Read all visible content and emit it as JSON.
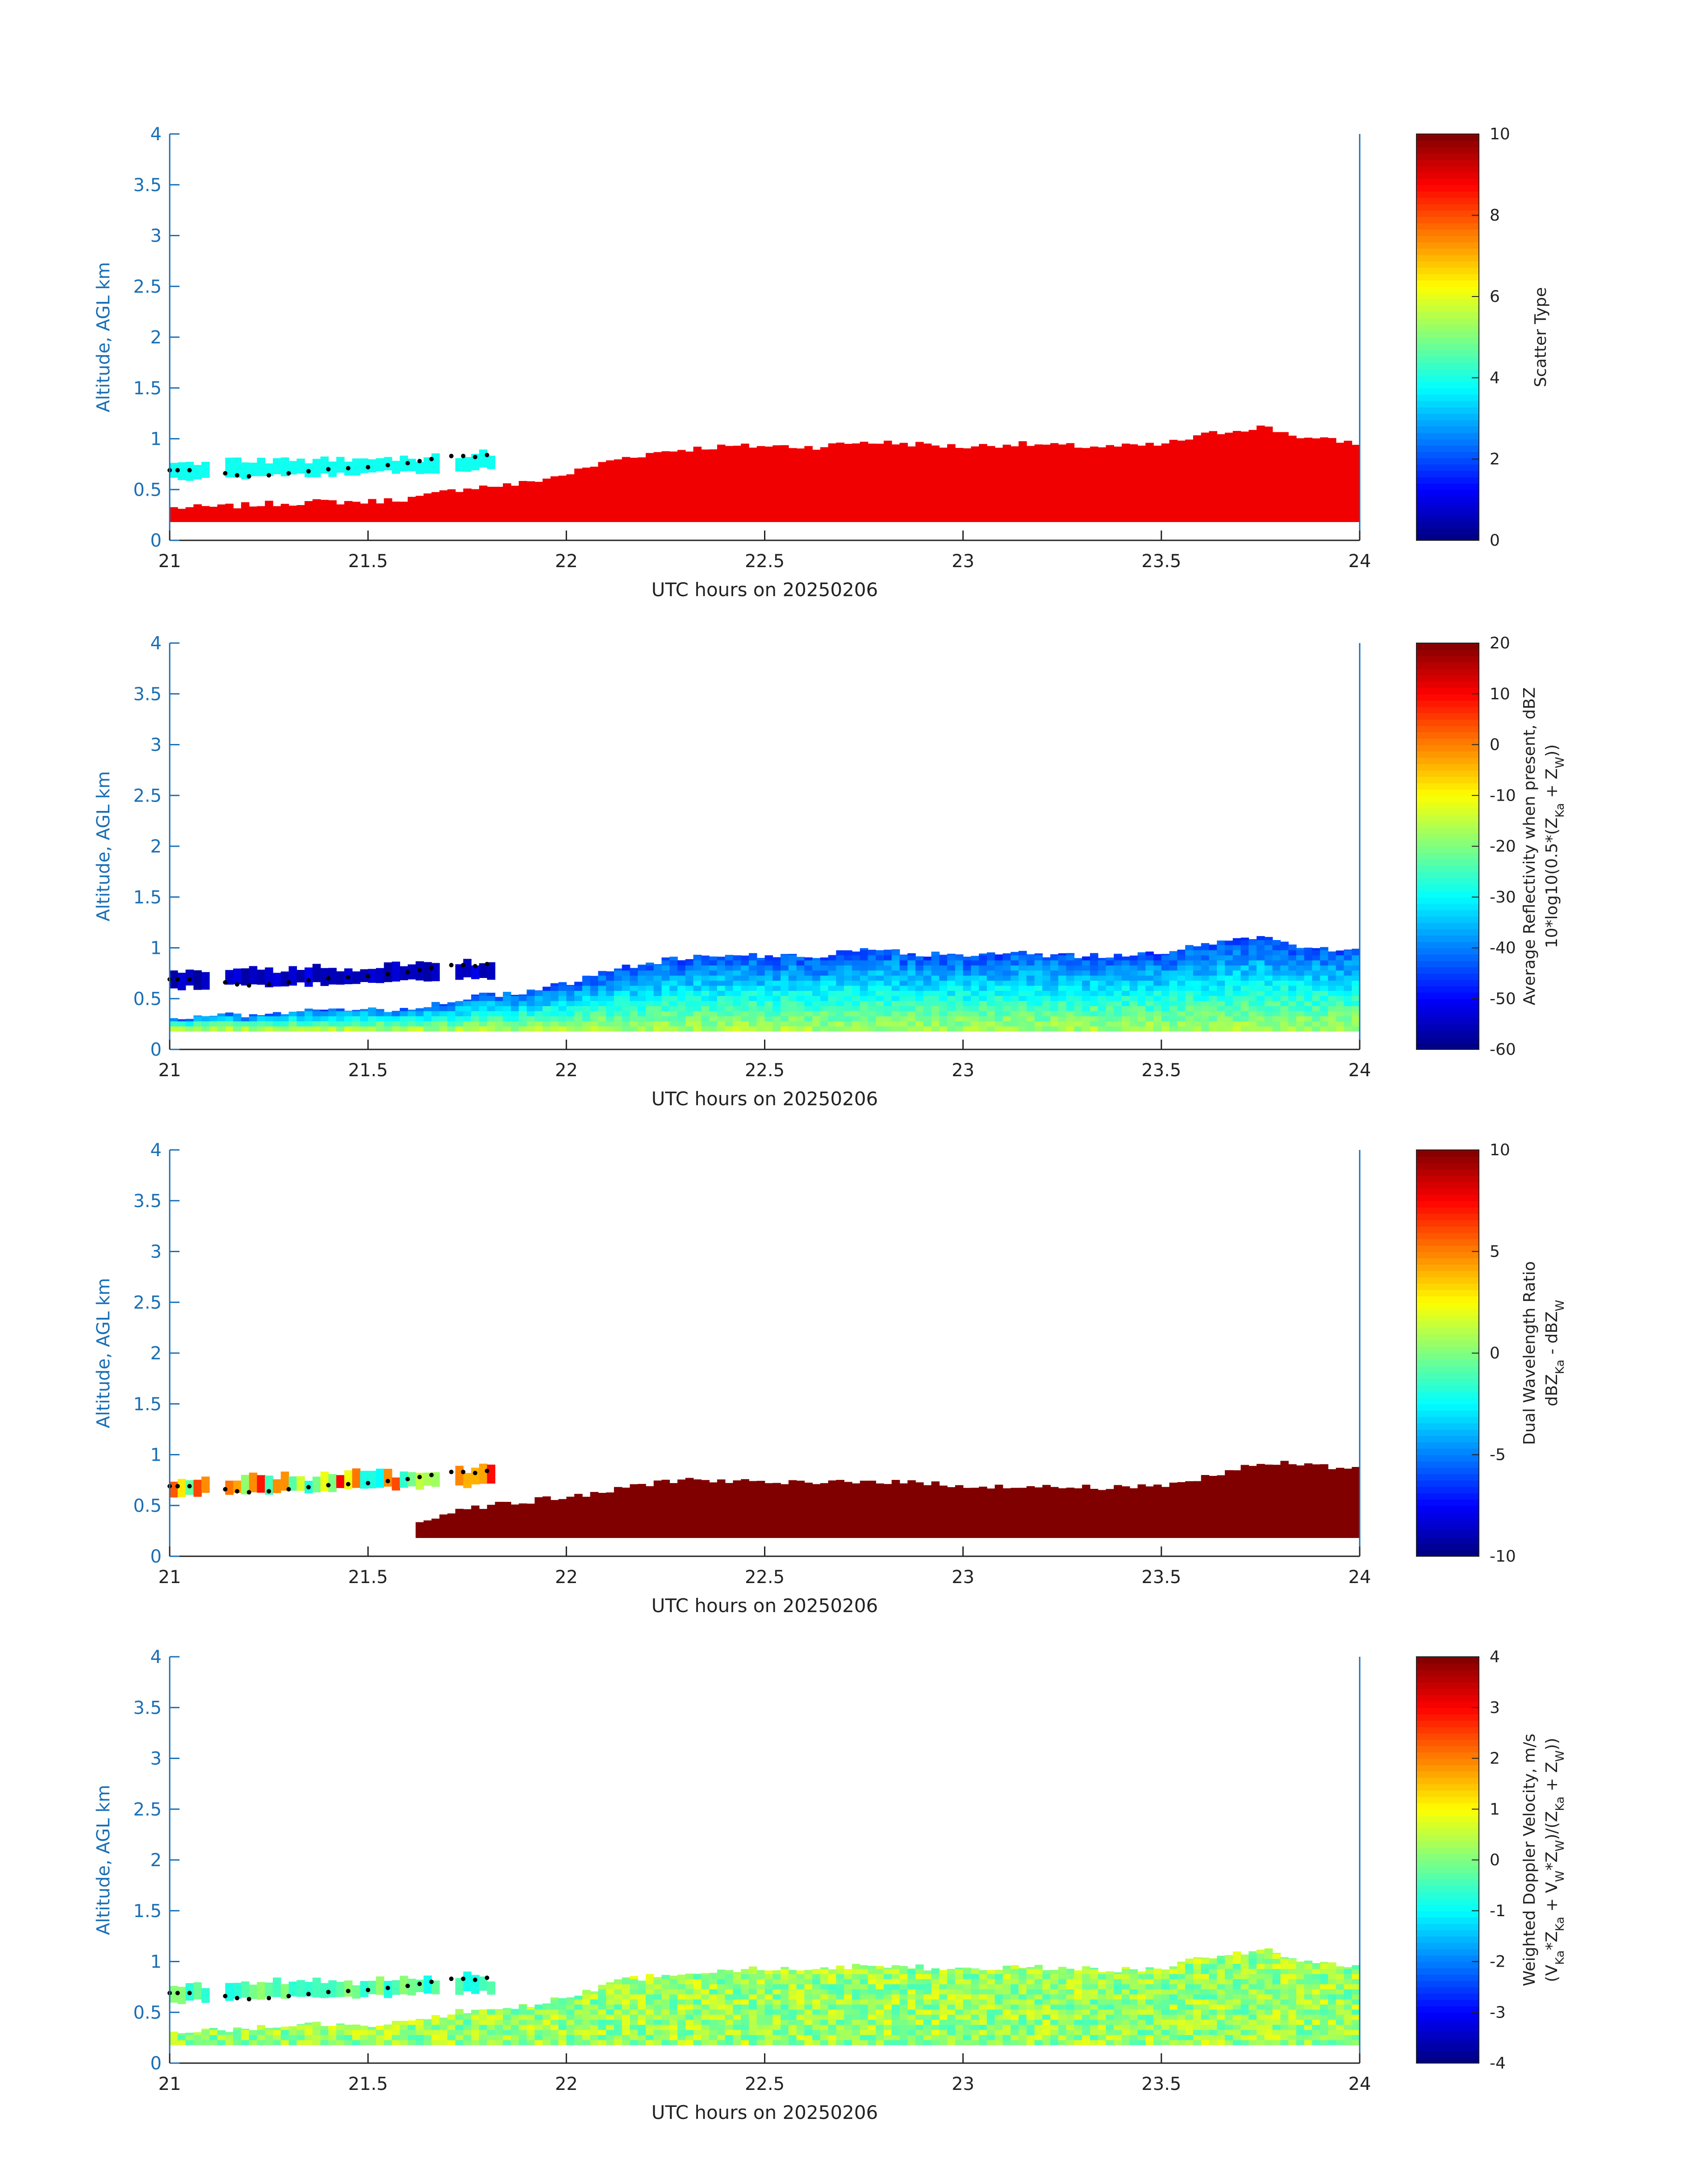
{
  "chart_data": [
    {
      "type": "heatmap",
      "title": "",
      "xlabel": "UTC hours on 20250206",
      "ylabel": "Altitude, AGL km",
      "xlim": [
        21,
        24
      ],
      "ylim": [
        0,
        4
      ],
      "xticks": [
        "21",
        "21.5",
        "22",
        "22.5",
        "23",
        "23.5",
        "24"
      ],
      "yticks": [
        "0",
        "0.5",
        "1",
        "1.5",
        "2",
        "2.5",
        "3",
        "3.5",
        "4"
      ],
      "colorbar": {
        "label_lines": [
          "Scatter Type"
        ],
        "clim": [
          0,
          10
        ],
        "ticks": [
          "0",
          "2",
          "4",
          "6",
          "8",
          "10"
        ],
        "colormap": "jet"
      },
      "variable": "scatter_type",
      "upper_layer_value": 3.9,
      "lower_layer_value": 8.9
    },
    {
      "type": "heatmap",
      "title": "",
      "xlabel": "UTC hours on 20250206",
      "ylabel": "Altitude, AGL km",
      "xlim": [
        21,
        24
      ],
      "ylim": [
        0,
        4
      ],
      "xticks": [
        "21",
        "21.5",
        "22",
        "22.5",
        "23",
        "23.5",
        "24"
      ],
      "yticks": [
        "0",
        "0.5",
        "1",
        "1.5",
        "2",
        "2.5",
        "3",
        "3.5",
        "4"
      ],
      "colorbar": {
        "label_lines": [
          "Average Reflectivity when present, dBZ",
          "10*log10(0.5*(Z",
          "Ka",
          " + Z",
          "W",
          "))"
        ],
        "clim": [
          -60,
          20
        ],
        "ticks": [
          "-60",
          "-50",
          "-40",
          "-30",
          "-20",
          "-10",
          "0",
          "10",
          "20"
        ],
        "colormap": "jet"
      },
      "variable": "reflectivity_dBZ",
      "upper_layer_value": -54,
      "lower_layer_top_value": -45,
      "lower_layer_bottom_value": -17
    },
    {
      "type": "heatmap",
      "title": "",
      "xlabel": "UTC hours on 20250206",
      "ylabel": "Altitude, AGL km",
      "xlim": [
        21,
        24
      ],
      "ylim": [
        0,
        4
      ],
      "xticks": [
        "21",
        "21.5",
        "22",
        "22.5",
        "23",
        "23.5",
        "24"
      ],
      "yticks": [
        "0",
        "0.5",
        "1",
        "1.5",
        "2",
        "2.5",
        "3",
        "3.5",
        "4"
      ],
      "colorbar": {
        "label_lines": [
          "Dual Wavelength Ratio",
          "dBZ",
          "Ka",
          " - dBZ",
          "W"
        ],
        "clim": [
          -10,
          10
        ],
        "ticks": [
          "-10",
          "-5",
          "0",
          "5",
          "10"
        ],
        "colormap": "jet"
      },
      "variable": "dual_wavelength_ratio_dB",
      "upper_layer_value": 2.5,
      "lower_layer_value": 10
    },
    {
      "type": "heatmap",
      "title": "",
      "xlabel": "UTC hours on 20250206",
      "ylabel": "Altitude, AGL km",
      "xlim": [
        21,
        24
      ],
      "ylim": [
        0,
        4
      ],
      "xticks": [
        "21",
        "21.5",
        "22",
        "22.5",
        "23",
        "23.5",
        "24"
      ],
      "yticks": [
        "0",
        "0.5",
        "1",
        "1.5",
        "2",
        "2.5",
        "3",
        "3.5",
        "4"
      ],
      "colorbar": {
        "label_lines": [
          "Weighted Doppler Velocity, m/s",
          "(V",
          "Ka",
          "*Z",
          "Ka",
          " + V",
          "W",
          "*Z",
          "W",
          ")/(Z",
          "Ka",
          " + Z",
          "W",
          "))"
        ],
        "clim": [
          -4,
          4
        ],
        "ticks": [
          "-4",
          "-3",
          "-2",
          "-1",
          "0",
          "1",
          "2",
          "3",
          "4"
        ],
        "colormap": "jet"
      },
      "variable": "doppler_velocity_ms",
      "upper_layer_value": -0.4,
      "lower_layer_value": 0.2
    }
  ],
  "shared_profiles": {
    "x_hours": [
      21.0,
      21.125,
      21.25,
      21.375,
      21.5,
      21.625,
      21.75,
      21.875,
      22.0,
      22.125,
      22.25,
      22.375,
      22.5,
      22.625,
      22.75,
      22.875,
      23.0,
      23.125,
      23.25,
      23.375,
      23.5,
      23.625,
      23.75,
      23.875,
      24.0
    ],
    "lower_layer_base_km": 0.18,
    "lower_layer_top_km": [
      0.32,
      0.33,
      0.36,
      0.38,
      0.38,
      0.42,
      0.52,
      0.55,
      0.65,
      0.8,
      0.88,
      0.92,
      0.93,
      0.92,
      0.97,
      0.95,
      0.92,
      0.95,
      0.93,
      0.92,
      0.94,
      1.05,
      1.12,
      1.0,
      0.96
    ],
    "dwr_layer_top_km": [
      null,
      null,
      null,
      null,
      null,
      0.35,
      0.48,
      0.53,
      0.58,
      0.65,
      0.75,
      0.75,
      0.72,
      0.72,
      0.75,
      0.72,
      0.7,
      0.68,
      0.68,
      0.68,
      0.7,
      0.78,
      0.92,
      0.9,
      0.85
    ],
    "upper_layer_time_range": [
      21.0,
      21.8
    ],
    "upper_layer_base_km": 0.6,
    "upper_layer_top_km": 0.85,
    "melting_level_dots": {
      "x": [
        21.0,
        21.02,
        21.05,
        21.14,
        21.17,
        21.2,
        21.25,
        21.3,
        21.35,
        21.4,
        21.45,
        21.5,
        21.55,
        21.6,
        21.63,
        21.66,
        21.71,
        21.74,
        21.77,
        21.8
      ],
      "y_km": [
        0.69,
        0.69,
        0.69,
        0.66,
        0.64,
        0.63,
        0.64,
        0.66,
        0.68,
        0.7,
        0.71,
        0.72,
        0.74,
        0.76,
        0.78,
        0.8,
        0.83,
        0.83,
        0.82,
        0.84
      ]
    }
  }
}
